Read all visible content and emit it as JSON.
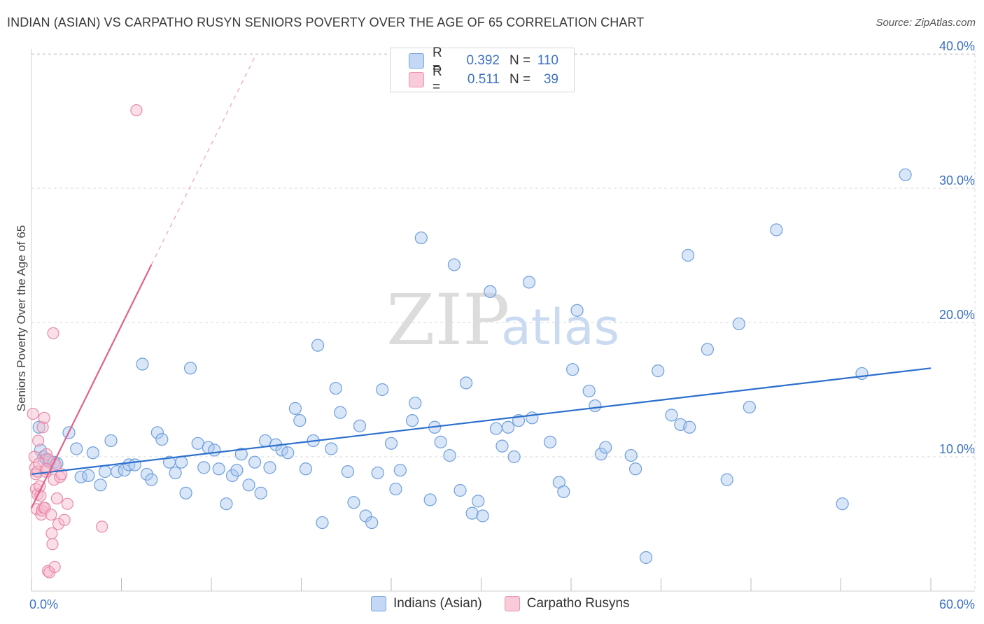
{
  "title": "INDIAN (ASIAN) VS CARPATHO RUSYN SENIORS POVERTY OVER THE AGE OF 65 CORRELATION CHART",
  "source": "Source: ZipAtlas.com",
  "watermark": {
    "zip": "ZIP",
    "atlas": "atlas"
  },
  "colors": {
    "blue_fill": "#a9c8ef",
    "blue_stroke": "#6f9fdc",
    "blue_line": "#2c6fcd",
    "pink_fill": "#f6b7cb",
    "pink_stroke": "#e68aa8",
    "pink_line": "#e0618d",
    "grid": "#d9d9d9",
    "tick_text": "#3d72c4"
  },
  "legend": {
    "rows": [
      {
        "r_label": "R =",
        "r_value": "0.392",
        "n_label": "N =",
        "n_value": "110"
      },
      {
        "r_label": "R =",
        "r_value": "0.511",
        "n_label": "N =",
        "n_value": "39"
      }
    ]
  },
  "bottom_legend": [
    "Indians (Asian)",
    "Carpatho Rusyns"
  ],
  "chart_data": {
    "type": "scatter",
    "title": "INDIAN (ASIAN) VS CARPATHO RUSYN SENIORS POVERTY OVER THE AGE OF 65 CORRELATION CHART",
    "xlabel": "",
    "ylabel": "Seniors Poverty Over the Age of 65",
    "xlim": [
      0,
      60
    ],
    "ylim": [
      0,
      42
    ],
    "x_tick_labels": [
      "0.0%",
      "60.0%"
    ],
    "y_ticks": [
      10,
      20,
      30,
      40
    ],
    "y_tick_labels": [
      "10.0%",
      "20.0%",
      "30.0%",
      "40.0%"
    ],
    "grid": true,
    "series": [
      {
        "name": "Indians (Asian)",
        "R": 0.392,
        "N": 110,
        "trend": {
          "x": [
            0,
            60
          ],
          "y": [
            8.7,
            16.6
          ],
          "dashed_extension": false
        },
        "points": [
          [
            0.5,
            12.2
          ],
          [
            0.6,
            10.5
          ],
          [
            0.8,
            10.0
          ],
          [
            1.0,
            9.8
          ],
          [
            1.2,
            9.6
          ],
          [
            1.5,
            9.6
          ],
          [
            1.7,
            9.5
          ],
          [
            2.5,
            11.8
          ],
          [
            3.0,
            10.6
          ],
          [
            3.3,
            8.5
          ],
          [
            3.8,
            8.6
          ],
          [
            4.1,
            10.3
          ],
          [
            4.6,
            7.9
          ],
          [
            4.9,
            8.9
          ],
          [
            5.3,
            11.2
          ],
          [
            5.7,
            8.9
          ],
          [
            6.2,
            9.0
          ],
          [
            6.5,
            9.4
          ],
          [
            6.9,
            9.4
          ],
          [
            7.4,
            16.9
          ],
          [
            7.7,
            8.7
          ],
          [
            8.0,
            8.3
          ],
          [
            8.4,
            11.8
          ],
          [
            8.7,
            11.3
          ],
          [
            9.2,
            9.6
          ],
          [
            9.6,
            8.8
          ],
          [
            10.0,
            9.6
          ],
          [
            10.3,
            7.3
          ],
          [
            10.6,
            16.6
          ],
          [
            11.1,
            11.0
          ],
          [
            11.5,
            9.2
          ],
          [
            11.8,
            10.7
          ],
          [
            12.2,
            10.5
          ],
          [
            12.5,
            9.1
          ],
          [
            13.0,
            6.5
          ],
          [
            13.4,
            8.6
          ],
          [
            13.7,
            9.0
          ],
          [
            14.0,
            10.2
          ],
          [
            14.5,
            7.9
          ],
          [
            14.9,
            9.6
          ],
          [
            15.3,
            7.3
          ],
          [
            15.6,
            11.2
          ],
          [
            15.9,
            9.2
          ],
          [
            16.3,
            10.9
          ],
          [
            16.7,
            10.5
          ],
          [
            17.1,
            10.3
          ],
          [
            17.6,
            13.6
          ],
          [
            17.9,
            12.7
          ],
          [
            18.3,
            9.1
          ],
          [
            18.8,
            11.2
          ],
          [
            19.1,
            18.3
          ],
          [
            19.4,
            5.1
          ],
          [
            20.0,
            10.6
          ],
          [
            20.3,
            15.1
          ],
          [
            20.6,
            13.3
          ],
          [
            21.1,
            8.9
          ],
          [
            21.5,
            6.6
          ],
          [
            21.9,
            12.3
          ],
          [
            22.3,
            5.6
          ],
          [
            22.7,
            5.1
          ],
          [
            23.1,
            8.8
          ],
          [
            23.4,
            15.0
          ],
          [
            24.0,
            11.0
          ],
          [
            24.3,
            7.6
          ],
          [
            24.6,
            9.0
          ],
          [
            25.4,
            12.7
          ],
          [
            25.6,
            14.0
          ],
          [
            26.0,
            26.3
          ],
          [
            26.6,
            6.8
          ],
          [
            26.9,
            12.2
          ],
          [
            27.3,
            11.1
          ],
          [
            27.9,
            10.1
          ],
          [
            28.2,
            24.3
          ],
          [
            28.6,
            7.5
          ],
          [
            29.0,
            15.5
          ],
          [
            29.4,
            5.8
          ],
          [
            29.8,
            6.7
          ],
          [
            30.1,
            5.6
          ],
          [
            30.6,
            22.3
          ],
          [
            31.0,
            12.1
          ],
          [
            31.4,
            10.8
          ],
          [
            31.8,
            12.2
          ],
          [
            32.2,
            10.0
          ],
          [
            32.5,
            12.7
          ],
          [
            33.2,
            23.0
          ],
          [
            33.4,
            12.9
          ],
          [
            34.6,
            11.1
          ],
          [
            35.2,
            8.1
          ],
          [
            35.5,
            7.4
          ],
          [
            36.1,
            16.5
          ],
          [
            36.4,
            20.9
          ],
          [
            37.2,
            14.9
          ],
          [
            37.6,
            13.8
          ],
          [
            38.0,
            10.2
          ],
          [
            38.3,
            10.7
          ],
          [
            40.0,
            10.1
          ],
          [
            40.3,
            9.1
          ],
          [
            41.0,
            2.5
          ],
          [
            41.8,
            16.4
          ],
          [
            42.7,
            13.1
          ],
          [
            43.3,
            12.4
          ],
          [
            43.8,
            25.0
          ],
          [
            43.9,
            12.2
          ],
          [
            45.1,
            18.0
          ],
          [
            46.4,
            8.3
          ],
          [
            47.2,
            19.9
          ],
          [
            47.9,
            13.7
          ],
          [
            49.7,
            26.9
          ],
          [
            54.1,
            6.5
          ],
          [
            55.4,
            16.2
          ],
          [
            58.3,
            31.0
          ]
        ]
      },
      {
        "name": "Carpatho Rusyns",
        "R": 0.511,
        "N": 39,
        "trend": {
          "x": [
            0,
            8
          ],
          "y": [
            6.2,
            24.3
          ],
          "dashed_extension": true,
          "dash_to": [
            15,
            40
          ]
        },
        "points": [
          [
            0.1,
            13.2
          ],
          [
            0.2,
            10.0
          ],
          [
            0.25,
            9.2
          ],
          [
            0.3,
            8.7
          ],
          [
            0.3,
            7.6
          ],
          [
            0.35,
            6.1
          ],
          [
            0.4,
            7.2
          ],
          [
            0.4,
            8.9
          ],
          [
            0.45,
            11.2
          ],
          [
            0.5,
            9.5
          ],
          [
            0.55,
            7.8
          ],
          [
            0.6,
            7.1
          ],
          [
            0.65,
            5.7
          ],
          [
            0.7,
            6.0
          ],
          [
            0.75,
            12.2
          ],
          [
            0.8,
            6.2
          ],
          [
            0.85,
            12.9
          ],
          [
            0.9,
            6.2
          ],
          [
            0.95,
            8.9
          ],
          [
            1.0,
            10.2
          ],
          [
            1.1,
            1.5
          ],
          [
            1.15,
            9.8
          ],
          [
            1.2,
            1.4
          ],
          [
            1.3,
            5.7
          ],
          [
            1.35,
            4.3
          ],
          [
            1.4,
            3.5
          ],
          [
            1.45,
            19.2
          ],
          [
            1.5,
            8.3
          ],
          [
            1.55,
            1.8
          ],
          [
            1.6,
            9.4
          ],
          [
            1.7,
            6.9
          ],
          [
            1.8,
            5.0
          ],
          [
            1.9,
            8.5
          ],
          [
            2.0,
            8.7
          ],
          [
            2.2,
            5.3
          ],
          [
            2.4,
            6.5
          ],
          [
            4.7,
            4.8
          ],
          [
            7.0,
            35.8
          ],
          [
            1.0,
            9.1
          ]
        ]
      }
    ]
  }
}
